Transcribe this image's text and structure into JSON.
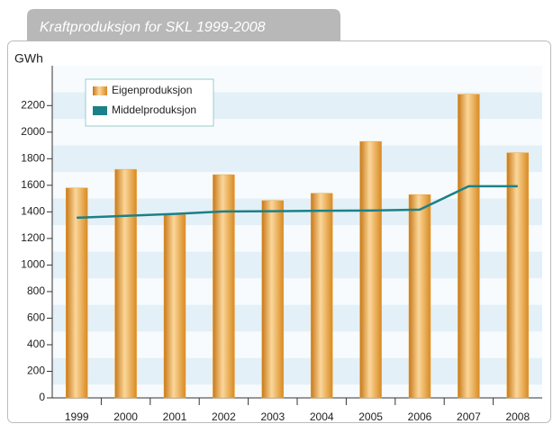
{
  "chart_data": {
    "type": "bar",
    "title": "Kraftproduksjon for SKL 1999-2008",
    "y_label": "GWh",
    "categories": [
      "1999",
      "2000",
      "2001",
      "2002",
      "2003",
      "2004",
      "2005",
      "2006",
      "2007",
      "2008"
    ],
    "series": [
      {
        "name": "Eigenproduksjon",
        "type": "bar",
        "color": "#f0a030",
        "values": [
          1580,
          1720,
          1380,
          1680,
          1485,
          1540,
          1930,
          1530,
          2285,
          1845
        ]
      },
      {
        "name": "Middelproduksjon",
        "type": "line",
        "color": "#1c8088",
        "values": [
          1356,
          1370,
          1385,
          1403,
          1405,
          1408,
          1410,
          1417,
          1593,
          1593
        ]
      }
    ],
    "ylim": [
      0,
      2500
    ],
    "yticks": [
      0,
      200,
      400,
      600,
      800,
      1000,
      1200,
      1400,
      1600,
      1800,
      2000,
      2200
    ],
    "grid": true,
    "legend": "top-left"
  }
}
